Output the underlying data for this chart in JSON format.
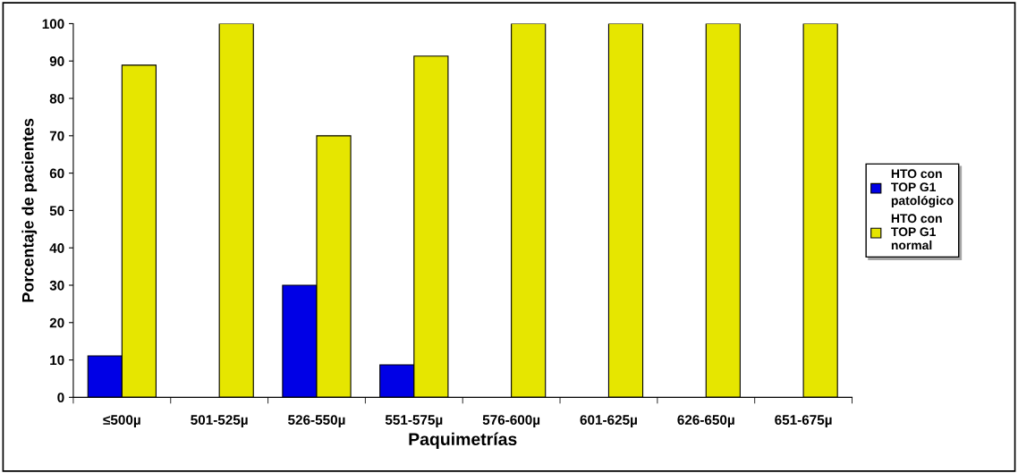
{
  "chart_data": {
    "type": "bar",
    "xlabel": "Paquimetrías",
    "ylabel": "Porcentaje de pacientes",
    "categories": [
      "≤500µ",
      "501-525µ",
      "526-550µ",
      "551-575µ",
      "576-600µ",
      "601-625µ",
      "626-650µ",
      "651-675µ"
    ],
    "series": [
      {
        "name": "HTO con\nTOP G1\npatológico",
        "color": "#0000e6",
        "values": [
          11.1,
          0,
          30,
          8.7,
          0,
          0,
          0,
          0
        ]
      },
      {
        "name": "HTO con\nTOP G1\nnormal",
        "color": "#e6e600",
        "values": [
          88.9,
          100,
          70,
          91.3,
          100,
          100,
          100,
          100
        ]
      }
    ],
    "ylim": [
      0,
      100
    ],
    "yticks": [
      0,
      10,
      20,
      30,
      40,
      50,
      60,
      70,
      80,
      90,
      100
    ],
    "grid": false,
    "legend": "right"
  }
}
